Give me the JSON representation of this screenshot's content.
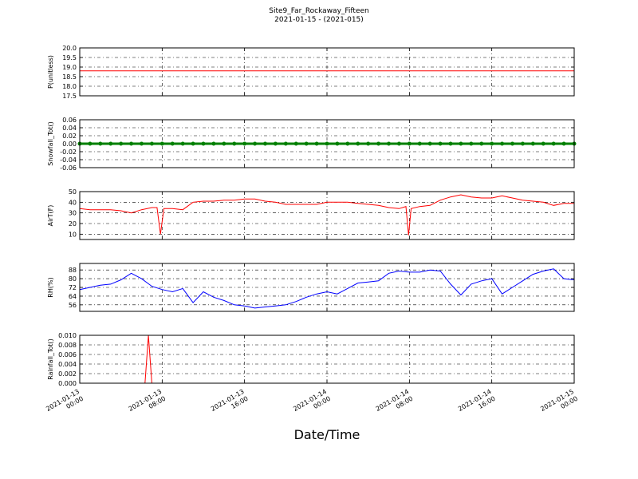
{
  "title": "Site9_Far_Rockaway_Fifteen",
  "subtitle": "2021-01-15 - (2021-015)",
  "xlabel": "Date/Time",
  "xlim": [
    "2021-01-13 00:00",
    "2021-01-15 00:00"
  ],
  "xticks": [
    {
      "value": "2021-01-13 00:00",
      "label": "2021-01-13\n00:00"
    },
    {
      "value": "2021-01-13 08:00",
      "label": "2021-01-13\n08:00"
    },
    {
      "value": "2021-01-13 16:00",
      "label": "2021-01-13\n16:00"
    },
    {
      "value": "2021-01-14 00:00",
      "label": "2021-01-14\n00:00"
    },
    {
      "value": "2021-01-14 08:00",
      "label": "2021-01-14\n08:00"
    },
    {
      "value": "2021-01-14 16:00",
      "label": "2021-01-14\n16:00"
    },
    {
      "value": "2021-01-15 00:00",
      "label": "2021-01-15\n00:00"
    }
  ],
  "chart_data": [
    {
      "type": "line",
      "ylabel": "P(unitless)",
      "ylim": [
        17.5,
        20
      ],
      "yticks": [
        17.5,
        {
          "value": 18,
          "label": "18.0"
        },
        18.5,
        {
          "value": 19,
          "label": "19.0"
        },
        19.5,
        {
          "value": 20,
          "label": "20.0"
        }
      ],
      "color": "#ff0000",
      "x": [
        "2021-01-13 00:00",
        "2021-01-15 00:00"
      ],
      "values": [
        18.8,
        18.8
      ]
    },
    {
      "type": "line",
      "ylabel": "Snowfall_Tot()",
      "ylim": [
        -0.06,
        0.06
      ],
      "yticks": [
        -0.06,
        -0.04,
        -0.02,
        {
          "value": 0,
          "label": "0.00"
        },
        0.02,
        0.04,
        0.06
      ],
      "color": "#008000",
      "marker": "o",
      "x": [
        "2021-01-13 00:00",
        "2021-01-13 01:00",
        "2021-01-13 02:00",
        "2021-01-13 03:00",
        "2021-01-13 04:00",
        "2021-01-13 05:00",
        "2021-01-13 06:00",
        "2021-01-13 07:00",
        "2021-01-13 08:00",
        "2021-01-13 09:00",
        "2021-01-13 10:00",
        "2021-01-13 11:00",
        "2021-01-13 12:00",
        "2021-01-13 13:00",
        "2021-01-13 14:00",
        "2021-01-13 15:00",
        "2021-01-13 16:00",
        "2021-01-13 17:00",
        "2021-01-13 18:00",
        "2021-01-13 19:00",
        "2021-01-13 20:00",
        "2021-01-13 21:00",
        "2021-01-13 22:00",
        "2021-01-13 23:00",
        "2021-01-14 00:00",
        "2021-01-14 01:00",
        "2021-01-14 02:00",
        "2021-01-14 03:00",
        "2021-01-14 04:00",
        "2021-01-14 05:00",
        "2021-01-14 06:00",
        "2021-01-14 07:00",
        "2021-01-14 08:00",
        "2021-01-14 09:00",
        "2021-01-14 10:00",
        "2021-01-14 11:00",
        "2021-01-14 12:00",
        "2021-01-14 13:00",
        "2021-01-14 14:00",
        "2021-01-14 15:00",
        "2021-01-14 16:00",
        "2021-01-14 17:00",
        "2021-01-14 18:00",
        "2021-01-14 19:00",
        "2021-01-14 20:00",
        "2021-01-14 21:00",
        "2021-01-14 22:00",
        "2021-01-14 23:00",
        "2021-01-15 00:00"
      ],
      "values": [
        0,
        0,
        0,
        0,
        0,
        0,
        0,
        0,
        0,
        0,
        0,
        0,
        0,
        0,
        0,
        0,
        0,
        0,
        0,
        0,
        0,
        0,
        0,
        0,
        0,
        0,
        0,
        0,
        0,
        0,
        0,
        0,
        0,
        0,
        0,
        0,
        0,
        0,
        0,
        0,
        0,
        0,
        0,
        0,
        0,
        0,
        0,
        0,
        0
      ]
    },
    {
      "type": "line",
      "ylabel": "AirT(F)",
      "ylim": [
        5,
        50
      ],
      "yticks": [
        10,
        20,
        30,
        40,
        50
      ],
      "color": "#ff0000",
      "x": [
        "2021-01-13 00:00",
        "2021-01-13 01:00",
        "2021-01-13 02:00",
        "2021-01-13 03:00",
        "2021-01-13 04:00",
        "2021-01-13 05:00",
        "2021-01-13 06:00",
        "2021-01-13 07:00",
        "2021-01-13 07:30",
        "2021-01-13 07:50",
        "2021-01-13 08:10",
        "2021-01-13 09:00",
        "2021-01-13 10:00",
        "2021-01-13 11:00",
        "2021-01-13 12:00",
        "2021-01-13 13:00",
        "2021-01-13 14:00",
        "2021-01-13 15:00",
        "2021-01-13 16:00",
        "2021-01-13 17:00",
        "2021-01-13 18:00",
        "2021-01-13 19:00",
        "2021-01-13 20:00",
        "2021-01-13 21:00",
        "2021-01-13 22:00",
        "2021-01-13 23:00",
        "2021-01-14 00:00",
        "2021-01-14 01:00",
        "2021-01-14 02:00",
        "2021-01-14 03:00",
        "2021-01-14 04:00",
        "2021-01-14 05:00",
        "2021-01-14 06:00",
        "2021-01-14 07:00",
        "2021-01-14 07:40",
        "2021-01-14 07:55",
        "2021-01-14 08:10",
        "2021-01-14 09:00",
        "2021-01-14 10:00",
        "2021-01-14 11:00",
        "2021-01-14 12:00",
        "2021-01-14 13:00",
        "2021-01-14 14:00",
        "2021-01-14 15:00",
        "2021-01-14 16:00",
        "2021-01-14 17:00",
        "2021-01-14 18:00",
        "2021-01-14 19:00",
        "2021-01-14 20:00",
        "2021-01-14 21:00",
        "2021-01-14 22:00",
        "2021-01-14 23:00",
        "2021-01-15 00:00"
      ],
      "values": [
        34,
        33,
        33,
        33,
        32,
        30,
        33,
        35,
        35,
        10,
        34,
        34,
        33,
        40,
        41,
        41,
        42,
        42,
        43,
        43,
        41,
        40,
        38,
        38,
        38,
        38,
        40,
        40,
        40,
        39,
        38,
        37,
        35,
        34,
        36,
        9,
        34,
        36,
        37,
        42,
        45,
        47,
        45,
        44,
        44,
        46,
        44,
        42,
        41,
        40,
        37,
        39,
        39
      ]
    },
    {
      "type": "line",
      "ylabel": "RH(%)",
      "ylim": [
        50,
        94
      ],
      "yticks": [
        56,
        64,
        72,
        80,
        88
      ],
      "color": "#0000ff",
      "x": [
        "2021-01-13 00:00",
        "2021-01-13 01:00",
        "2021-01-13 02:00",
        "2021-01-13 03:00",
        "2021-01-13 04:00",
        "2021-01-13 05:00",
        "2021-01-13 06:00",
        "2021-01-13 07:00",
        "2021-01-13 08:00",
        "2021-01-13 09:00",
        "2021-01-13 10:00",
        "2021-01-13 11:00",
        "2021-01-13 12:00",
        "2021-01-13 13:00",
        "2021-01-13 14:00",
        "2021-01-13 15:00",
        "2021-01-13 16:00",
        "2021-01-13 17:00",
        "2021-01-13 18:00",
        "2021-01-13 19:00",
        "2021-01-13 20:00",
        "2021-01-13 21:00",
        "2021-01-13 22:00",
        "2021-01-13 23:00",
        "2021-01-14 00:00",
        "2021-01-14 01:00",
        "2021-01-14 02:00",
        "2021-01-14 03:00",
        "2021-01-14 04:00",
        "2021-01-14 05:00",
        "2021-01-14 06:00",
        "2021-01-14 07:00",
        "2021-01-14 08:00",
        "2021-01-14 09:00",
        "2021-01-14 10:00",
        "2021-01-14 11:00",
        "2021-01-14 12:00",
        "2021-01-14 13:00",
        "2021-01-14 14:00",
        "2021-01-14 15:00",
        "2021-01-14 16:00",
        "2021-01-14 17:00",
        "2021-01-14 18:00",
        "2021-01-14 19:00",
        "2021-01-14 20:00",
        "2021-01-14 21:00",
        "2021-01-14 22:00",
        "2021-01-14 23:00",
        "2021-01-15 00:00"
      ],
      "values": [
        70,
        72,
        74,
        75,
        79,
        85,
        80,
        73,
        70,
        68,
        71,
        58,
        68,
        63,
        60,
        56,
        55,
        53,
        54,
        55,
        56,
        59,
        63,
        66,
        68,
        66,
        71,
        76,
        77,
        78,
        85,
        87,
        86,
        86,
        88,
        87,
        75,
        65,
        75,
        78,
        80,
        66,
        72,
        78,
        84,
        87,
        89,
        80,
        79
      ]
    },
    {
      "type": "line",
      "ylabel": "Rainfall_Tot()",
      "ylim": [
        0,
        0.01
      ],
      "yticks": [
        {
          "value": 0,
          "label": "0.000"
        },
        0.002,
        0.004,
        0.006,
        0.008,
        {
          "value": 0.01,
          "label": "0.010"
        }
      ],
      "color": "#ff0000",
      "x": [
        "2021-01-13 00:00",
        "2021-01-13 06:20",
        "2021-01-13 06:40",
        "2021-01-13 07:00",
        "2021-01-15 00:00"
      ],
      "values": [
        0,
        0,
        0.01,
        0,
        0
      ]
    }
  ]
}
